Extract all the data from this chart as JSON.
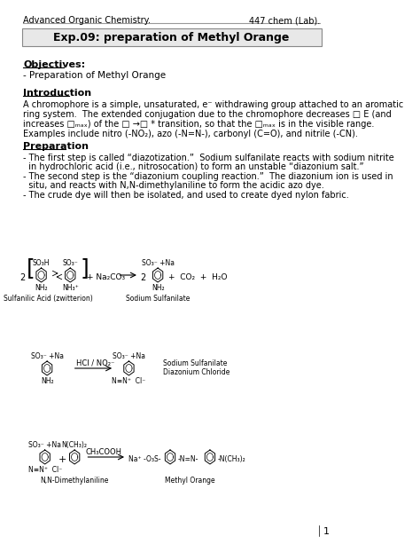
{
  "header_left": "Advanced Organic Chemistry.",
  "header_right": "447 chem (Lab).",
  "title": "Exp.09: preparation of Methyl Orange",
  "objectives_heading": "Objectives:",
  "objectives_text": "- Preparation of Methyl Orange",
  "intro_heading": "Introduction",
  "prep_heading": "Preparation",
  "rxn1_label_left": "Sulfanilic Acid (zwitterion)",
  "rxn1_label_right": "Sodium Sulfanilate",
  "rxn2_label_right1": "Sodium Sulfanilate",
  "rxn2_label_right2": "Diazonium Chloride",
  "rxn3_label_left": "N,N-Dimethylaniline",
  "rxn3_label_right": "Methyl Orange",
  "page_number": "1",
  "bg_color": "#ffffff",
  "text_color": "#000000",
  "title_box_color": "#e8e8e8"
}
